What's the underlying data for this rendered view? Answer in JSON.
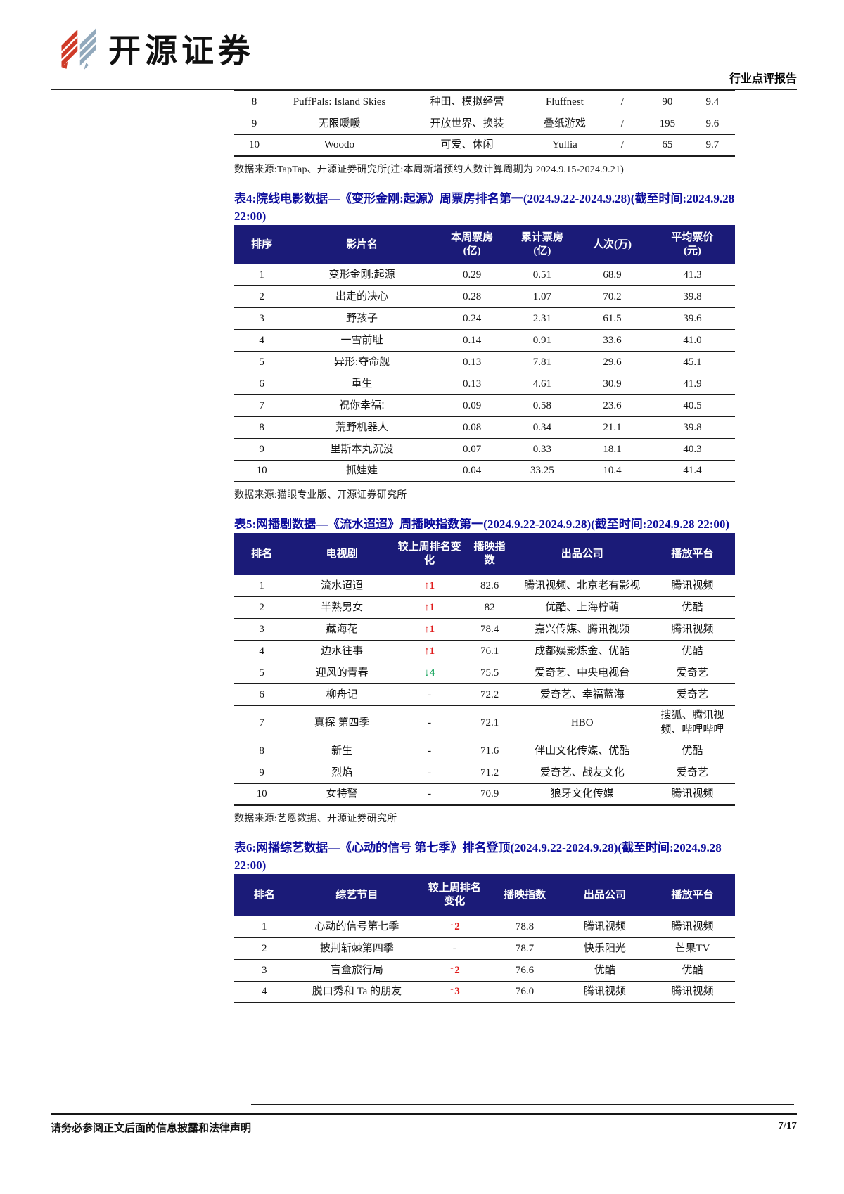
{
  "colors": {
    "header_navy": "#1b1b78",
    "title_blue": "#0c0c9c",
    "up_red": "#e01b1b",
    "down_green": "#12a35a",
    "logo_red": "#cf3b28",
    "logo_gray": "#92a9bc"
  },
  "brand": {
    "name": "开源证券",
    "report_type": "行业点评报告"
  },
  "games_table": {
    "rows": [
      {
        "rank": "8",
        "name": "PuffPals: Island Skies",
        "tags": "种田、模拟经营",
        "company": "Fluffnest",
        "change": "/",
        "count": "90",
        "rating": "9.4"
      },
      {
        "rank": "9",
        "name": "无限暖暖",
        "tags": "开放世界、换装",
        "company": "叠纸游戏",
        "change": "/",
        "count": "195",
        "rating": "9.6"
      },
      {
        "rank": "10",
        "name": "Woodo",
        "tags": "可爱、休闲",
        "company": "Yullia",
        "change": "/",
        "count": "65",
        "rating": "9.7"
      }
    ],
    "source": "数据来源:TapTap、开源证券研究所(注:本周新增预约人数计算周期为 2024.9.15-2024.9.21)"
  },
  "table4": {
    "title": "表4:院线电影数据—《变形金刚:起源》周票房排名第一(2024.9.22-2024.9.28)(截至时间:2024.9.28 22:00)",
    "headers": [
      [
        "排序"
      ],
      [
        "影片名"
      ],
      [
        "本周票房",
        "(亿)"
      ],
      [
        "累计票房",
        "(亿)"
      ],
      [
        "人次(万)"
      ],
      [
        "平均票价",
        "(元)"
      ]
    ],
    "rows": [
      {
        "rank": "1",
        "name": "变形金刚:起源",
        "week": "0.29",
        "total": "0.51",
        "people": "68.9",
        "price": "41.3"
      },
      {
        "rank": "2",
        "name": "出走的决心",
        "week": "0.28",
        "total": "1.07",
        "people": "70.2",
        "price": "39.8"
      },
      {
        "rank": "3",
        "name": "野孩子",
        "week": "0.24",
        "total": "2.31",
        "people": "61.5",
        "price": "39.6"
      },
      {
        "rank": "4",
        "name": "一雪前耻",
        "week": "0.14",
        "total": "0.91",
        "people": "33.6",
        "price": "41.0"
      },
      {
        "rank": "5",
        "name": "异形:夺命舰",
        "week": "0.13",
        "total": "7.81",
        "people": "29.6",
        "price": "45.1"
      },
      {
        "rank": "6",
        "name": "重生",
        "week": "0.13",
        "total": "4.61",
        "people": "30.9",
        "price": "41.9"
      },
      {
        "rank": "7",
        "name": "祝你幸福!",
        "week": "0.09",
        "total": "0.58",
        "people": "23.6",
        "price": "40.5"
      },
      {
        "rank": "8",
        "name": "荒野机器人",
        "week": "0.08",
        "total": "0.34",
        "people": "21.1",
        "price": "39.8"
      },
      {
        "rank": "9",
        "name": "里斯本丸沉没",
        "week": "0.07",
        "total": "0.33",
        "people": "18.1",
        "price": "40.3"
      },
      {
        "rank": "10",
        "name": "抓娃娃",
        "week": "0.04",
        "total": "33.25",
        "people": "10.4",
        "price": "41.4"
      }
    ],
    "source": "数据来源:猫眼专业版、开源证券研究所"
  },
  "table5": {
    "title": "表5:网播剧数据—《流水迢迢》周播映指数第一(2024.9.22-2024.9.28)(截至时间:2024.9.28 22:00)",
    "headers": [
      [
        "排名"
      ],
      [
        "电视剧"
      ],
      [
        "较上周排名变",
        "化"
      ],
      [
        "播映指",
        "数"
      ],
      [
        "出品公司"
      ],
      [
        "播放平台"
      ]
    ],
    "rows": [
      {
        "rank": "1",
        "name": "流水迢迢",
        "change": "↑1",
        "index": "82.6",
        "company": "腾讯视频、北京老有影视",
        "platform": "腾讯视频"
      },
      {
        "rank": "2",
        "name": "半熟男女",
        "change": "↑1",
        "index": "82",
        "company": "优酷、上海柠萌",
        "platform": "优酷"
      },
      {
        "rank": "3",
        "name": "藏海花",
        "change": "↑1",
        "index": "78.4",
        "company": "嘉兴传媒、腾讯视频",
        "platform": "腾讯视频"
      },
      {
        "rank": "4",
        "name": "边水往事",
        "change": "↑1",
        "index": "76.1",
        "company": "成都娱影炼金、优酷",
        "platform": "优酷"
      },
      {
        "rank": "5",
        "name": "迎风的青春",
        "change": "↓4",
        "index": "75.5",
        "company": "爱奇艺、中央电视台",
        "platform": "爱奇艺"
      },
      {
        "rank": "6",
        "name": "柳舟记",
        "change": "-",
        "index": "72.2",
        "company": "爱奇艺、幸福蓝海",
        "platform": "爱奇艺"
      },
      {
        "rank": "7",
        "name": "真探 第四季",
        "change": "-",
        "index": "72.1",
        "company": "HBO",
        "platform": "搜狐、腾讯视频、哔哩哔哩"
      },
      {
        "rank": "8",
        "name": "新生",
        "change": "-",
        "index": "71.6",
        "company": "伴山文化传媒、优酷",
        "platform": "优酷"
      },
      {
        "rank": "9",
        "name": "烈焰",
        "change": "-",
        "index": "71.2",
        "company": "爱奇艺、战友文化",
        "platform": "爱奇艺"
      },
      {
        "rank": "10",
        "name": "女特警",
        "change": "-",
        "index": "70.9",
        "company": "狼牙文化传媒",
        "platform": "腾讯视频"
      }
    ],
    "source": "数据来源:艺恩数据、开源证券研究所"
  },
  "table6": {
    "title": "表6:网播综艺数据—《心动的信号 第七季》排名登顶(2024.9.22-2024.9.28)(截至时间:2024.9.28 22:00)",
    "headers": [
      [
        "排名"
      ],
      [
        "综艺节目"
      ],
      [
        "较上周排名",
        "变化"
      ],
      [
        "播映指数"
      ],
      [
        "出品公司"
      ],
      [
        "播放平台"
      ]
    ],
    "rows": [
      {
        "rank": "1",
        "name": "心动的信号第七季",
        "change": "↑2",
        "index": "78.8",
        "company": "腾讯视频",
        "platform": "腾讯视频"
      },
      {
        "rank": "2",
        "name": "披荆斩棘第四季",
        "change": "-",
        "index": "78.7",
        "company": "快乐阳光",
        "platform": "芒果TV"
      },
      {
        "rank": "3",
        "name": "盲盒旅行局",
        "change": "↑2",
        "index": "76.6",
        "company": "优酷",
        "platform": "优酷"
      },
      {
        "rank": "4",
        "name": "脱口秀和 Ta 的朋友",
        "change": "↑3",
        "index": "76.0",
        "company": "腾讯视频",
        "platform": "腾讯视频"
      }
    ]
  },
  "footer": {
    "disclaimer": "请务必参阅正文后面的信息披露和法律声明",
    "page_number": "7/17"
  }
}
